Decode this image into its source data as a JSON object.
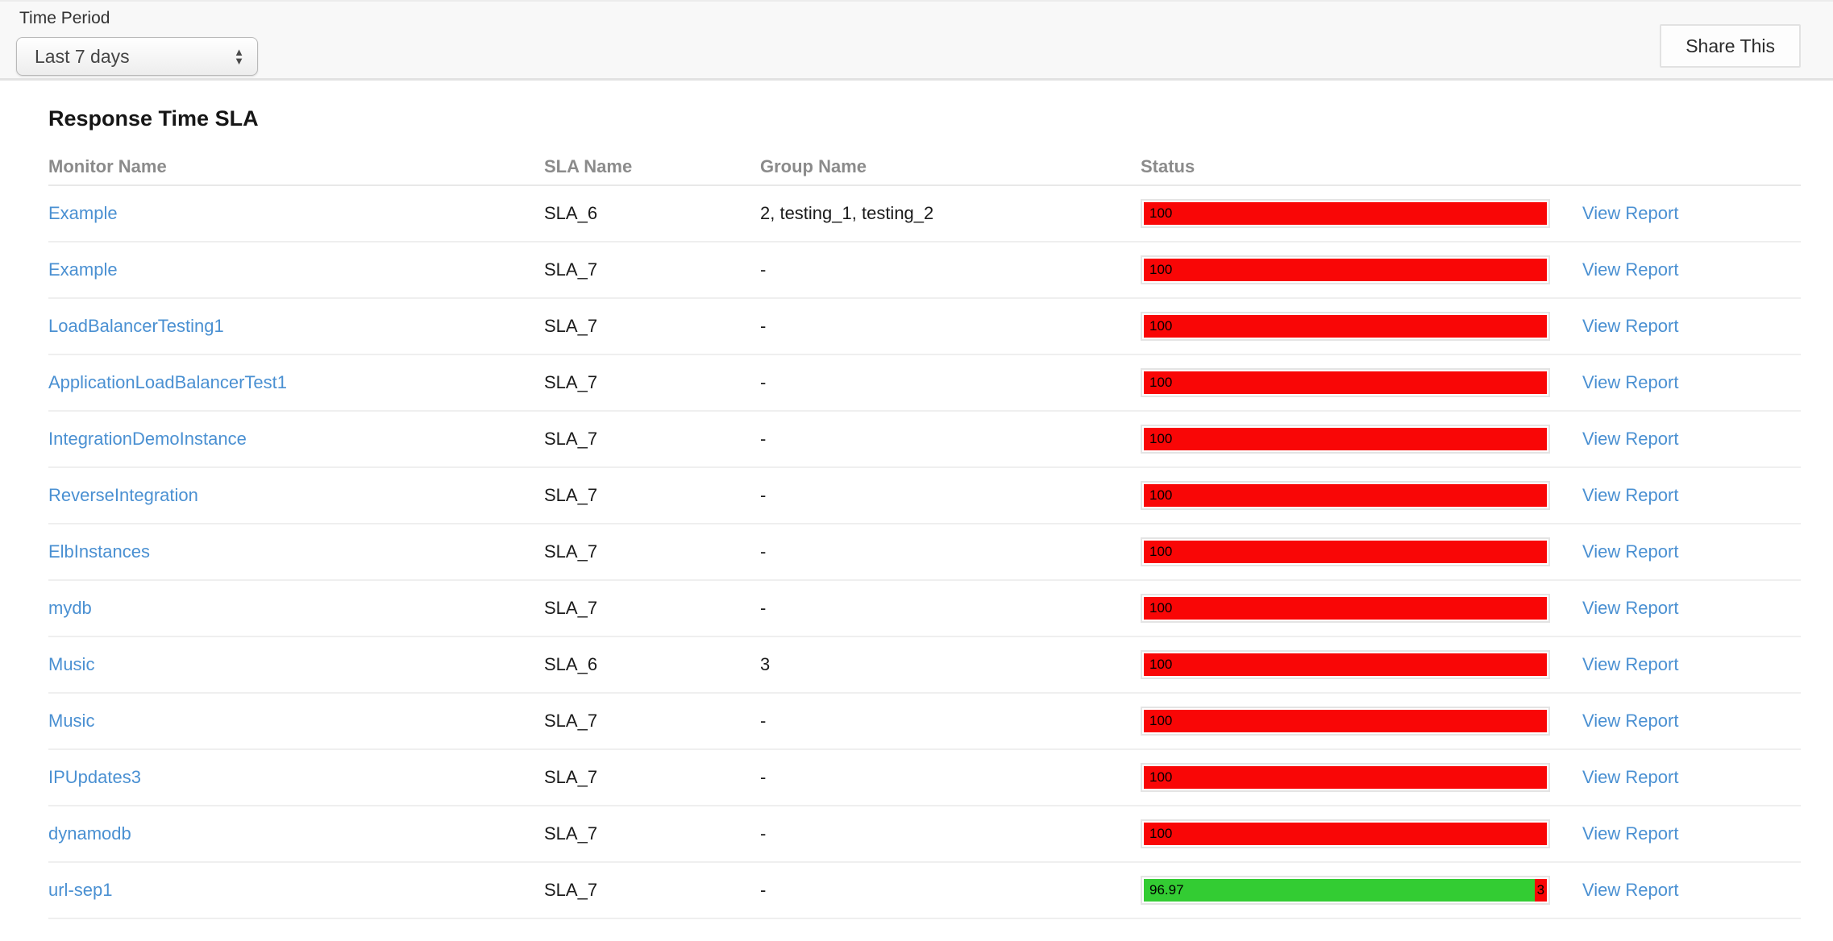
{
  "toolbar": {
    "time_period_label": "Time Period",
    "time_period_value": "Last 7 days",
    "share_button_label": "Share This"
  },
  "report": {
    "title": "Response Time SLA",
    "columns": [
      "Monitor Name",
      "SLA Name",
      "Group Name",
      "Status"
    ],
    "view_report_label": "View Report",
    "rows": [
      {
        "monitor": "Example",
        "sla": "SLA_6",
        "group": "2, testing_1, testing_2",
        "segments": [
          {
            "value": 100,
            "label": "100",
            "color": "#f90606"
          }
        ]
      },
      {
        "monitor": "Example",
        "sla": "SLA_7",
        "group": "-",
        "segments": [
          {
            "value": 100,
            "label": "100",
            "color": "#f90606"
          }
        ]
      },
      {
        "monitor": "LoadBalancerTesting1",
        "sla": "SLA_7",
        "group": "-",
        "segments": [
          {
            "value": 100,
            "label": "100",
            "color": "#f90606"
          }
        ]
      },
      {
        "monitor": "ApplicationLoadBalancerTest1",
        "sla": "SLA_7",
        "group": "-",
        "segments": [
          {
            "value": 100,
            "label": "100",
            "color": "#f90606"
          }
        ]
      },
      {
        "monitor": "IntegrationDemoInstance",
        "sla": "SLA_7",
        "group": "-",
        "segments": [
          {
            "value": 100,
            "label": "100",
            "color": "#f90606"
          }
        ]
      },
      {
        "monitor": "ReverseIntegration",
        "sla": "SLA_7",
        "group": "-",
        "segments": [
          {
            "value": 100,
            "label": "100",
            "color": "#f90606"
          }
        ]
      },
      {
        "monitor": "ElbInstances",
        "sla": "SLA_7",
        "group": "-",
        "segments": [
          {
            "value": 100,
            "label": "100",
            "color": "#f90606"
          }
        ]
      },
      {
        "monitor": "mydb",
        "sla": "SLA_7",
        "group": "-",
        "segments": [
          {
            "value": 100,
            "label": "100",
            "color": "#f90606"
          }
        ]
      },
      {
        "monitor": "Music",
        "sla": "SLA_6",
        "group": "3",
        "segments": [
          {
            "value": 100,
            "label": "100",
            "color": "#f90606"
          }
        ]
      },
      {
        "monitor": "Music",
        "sla": "SLA_7",
        "group": "-",
        "segments": [
          {
            "value": 100,
            "label": "100",
            "color": "#f90606"
          }
        ]
      },
      {
        "monitor": "IPUpdates3",
        "sla": "SLA_7",
        "group": "-",
        "segments": [
          {
            "value": 100,
            "label": "100",
            "color": "#f90606"
          }
        ]
      },
      {
        "monitor": "dynamodb",
        "sla": "SLA_7",
        "group": "-",
        "segments": [
          {
            "value": 100,
            "label": "100",
            "color": "#f90606"
          }
        ]
      },
      {
        "monitor": "url-sep1",
        "sla": "SLA_7",
        "group": "-",
        "segments": [
          {
            "value": 96.97,
            "label": "96.97",
            "color": "#33cc33"
          },
          {
            "value": 3.03,
            "label": "3",
            "color": "#f90606"
          }
        ]
      }
    ]
  },
  "icons": {
    "select_up": "▲",
    "select_down": "▼"
  },
  "colors": {
    "link": "#4a90d2",
    "bar_red": "#f90606",
    "bar_green": "#33cc33",
    "toolbar_bg": "#f8f8f8"
  }
}
